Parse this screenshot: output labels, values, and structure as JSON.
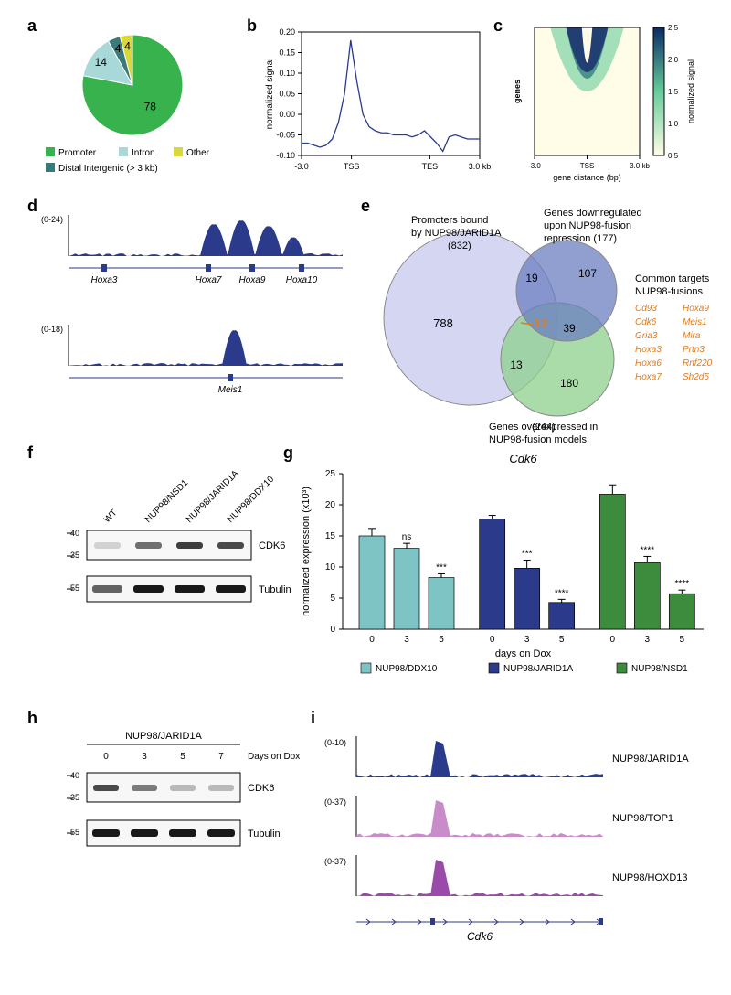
{
  "panel_labels": {
    "a": "a",
    "b": "b",
    "c": "c",
    "d": "d",
    "e": "e",
    "f": "f",
    "g": "g",
    "h": "h",
    "i": "i"
  },
  "colors": {
    "promoter": "#37b24d",
    "intron": "#a8d8d8",
    "distal": "#3a7a7a",
    "other": "#d8d83d",
    "line": "#2b3a8a",
    "heatmap_low": "#fffde7",
    "heatmap_mid": "#66cc99",
    "heatmap_high": "#0a2a66",
    "track": "#2b3a8a",
    "venn_a": "#c7c9ed",
    "venn_b": "#6b7fc0",
    "venn_c": "#8dd08d",
    "bar_ddx10": "#7fc4c4",
    "bar_jarid": "#2b3a8a",
    "bar_nsd1": "#3d8b3d",
    "highlight": "#e07b1a",
    "track2": "#c88cc8",
    "track3": "#9a4aa8"
  },
  "pie": {
    "slices": [
      {
        "label": "Promoter",
        "value": 78,
        "color": "#37b24d"
      },
      {
        "label": "Intron",
        "value": 14,
        "color": "#a8d8d8"
      },
      {
        "label": "Distal Intergenic (> 3 kb)",
        "value": 4,
        "color": "#3a7a7a"
      },
      {
        "label": "Other",
        "value": 4,
        "color": "#d8d83d"
      }
    ],
    "legend_fontsize": 10,
    "value_fontsize": 12
  },
  "b": {
    "type": "line",
    "xlabels": [
      "-3.0",
      "TSS",
      "TES",
      "3.0 kb"
    ],
    "ylabel": "normalized signal",
    "ylim": [
      -0.1,
      0.2
    ],
    "yticks": [
      -0.1,
      -0.05,
      0.0,
      0.05,
      0.1,
      0.15,
      0.2
    ],
    "label_fontsize": 10,
    "series": [
      [
        -0.07,
        -0.07,
        -0.075,
        -0.08,
        -0.075,
        -0.06,
        -0.02,
        0.05,
        0.18,
        0.08,
        0.0,
        -0.03,
        -0.04,
        -0.045,
        -0.045,
        -0.05,
        -0.05,
        -0.05,
        -0.055,
        -0.05,
        -0.04,
        -0.055,
        -0.07,
        -0.09,
        -0.055,
        -0.05,
        -0.055,
        -0.06,
        -0.06,
        -0.06
      ]
    ]
  },
  "c": {
    "type": "heatmap",
    "xlabel": "gene distance (bp)",
    "ylabel": "genes",
    "xlabels": [
      "-3.0",
      "TSS",
      "3.0 kb"
    ],
    "cbar_label": "normalized signal",
    "cbar_ticks": [
      "0.5",
      "1.0",
      "1.5",
      "2.0",
      "2.5"
    ],
    "label_fontsize": 9
  },
  "d": {
    "tracks": [
      {
        "scale": "(0-24)",
        "genes": [
          "Hoxa3",
          "Hoxa7",
          "Hoxa9",
          "Hoxa10"
        ]
      },
      {
        "scale": "(0-18)",
        "genes": [
          "Meis1"
        ]
      }
    ]
  },
  "e": {
    "circles": [
      {
        "label": "Promoters bound by NUP98/JARID1A",
        "count": 832
      },
      {
        "label": "Genes downregulated upon NUP98-fusion repression",
        "count": 177
      },
      {
        "label": "Genes overexpressed in NUP98-fusion models",
        "count": 244
      }
    ],
    "numbers": {
      "onlyA": 788,
      "onlyB": 107,
      "onlyC": 180,
      "AB": 19,
      "BC": 39,
      "AC": 13,
      "ABC": 12
    },
    "side_label": "Common targets NUP98-fusions",
    "gene_list": [
      "Cd93",
      "Hoxa9",
      "Cdk6",
      "Meis1",
      "Gria3",
      "Mira",
      "Hoxa3",
      "Prtn3",
      "Hoxa6",
      "Rnf220",
      "Hoxa7",
      "Sh2d5"
    ],
    "gene_fontsize": 10,
    "label_fontsize": 11
  },
  "f": {
    "header": [
      "WT",
      "NUP98/NSD1",
      "NUP98/JARID1A",
      "NUP98/DDX10"
    ],
    "rows": [
      {
        "mw": [
          "40",
          "35"
        ],
        "label": "CDK6"
      },
      {
        "mw": [
          "55"
        ],
        "label": "Tubulin"
      }
    ],
    "fontsize": 11
  },
  "g": {
    "title": "Cdk6",
    "title_style": "italic",
    "title_fontsize": 13,
    "ylabel": "normalized expression (x10³)",
    "ylabel_fontsize": 11,
    "xlabel": "days on Dox",
    "xlabel_fontsize": 11,
    "ylim": [
      0,
      25
    ],
    "yticks": [
      0,
      5,
      10,
      15,
      20,
      25
    ],
    "groups": [
      {
        "name": "NUP98/DDX10",
        "color": "#7fc4c4",
        "x": [
          "0",
          "3",
          "5"
        ],
        "y": [
          15,
          13,
          8.3
        ],
        "err": [
          1.2,
          0.8,
          0.6
        ],
        "sig": [
          "",
          "ns",
          "***"
        ]
      },
      {
        "name": "NUP98/JARID1A",
        "color": "#2b3a8a",
        "x": [
          "0",
          "3",
          "5"
        ],
        "y": [
          17.7,
          9.8,
          4.3
        ],
        "err": [
          0.6,
          1.3,
          0.5
        ],
        "sig": [
          "",
          "***",
          "****"
        ]
      },
      {
        "name": "NUP98/NSD1",
        "color": "#3d8b3d",
        "x": [
          "0",
          "3",
          "5"
        ],
        "y": [
          21.7,
          10.7,
          5.7
        ],
        "err": [
          1.5,
          1.0,
          0.6
        ],
        "sig": [
          "",
          "****",
          "****"
        ]
      }
    ],
    "legend": [
      "NUP98/DDX10",
      "NUP98/JARID1A",
      "NUP98/NSD1"
    ],
    "tick_fontsize": 10
  },
  "h": {
    "title": "NUP98/JARID1A",
    "cols": [
      "0",
      "3",
      "5",
      "7"
    ],
    "col_label": "Days on Dox",
    "rows": [
      {
        "mw": [
          "40",
          "35"
        ],
        "label": "CDK6"
      },
      {
        "mw": [
          "55"
        ],
        "label": "Tubulin"
      }
    ],
    "fontsize": 11
  },
  "i": {
    "tracks": [
      {
        "scale": "(0-10)",
        "label": "NUP98/JARID1A",
        "color": "#2b3a8a"
      },
      {
        "scale": "(0-37)",
        "label": "NUP98/TOP1",
        "color": "#c88cc8"
      },
      {
        "scale": "(0-37)",
        "label": "NUP98/HOXD13",
        "color": "#9a4aa8"
      }
    ],
    "gene": "Cdk6"
  }
}
